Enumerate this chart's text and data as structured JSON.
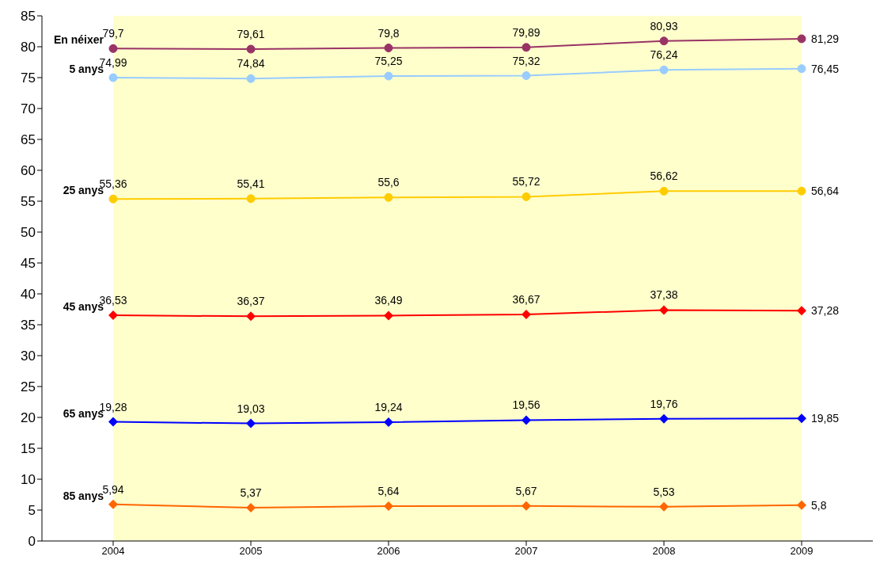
{
  "chart_data": {
    "type": "line",
    "categories": [
      "2004",
      "2005",
      "2006",
      "2007",
      "2008",
      "2009"
    ],
    "series": [
      {
        "name": "En néixer",
        "color": "#993366",
        "marker": "circle",
        "values": [
          79.7,
          79.61,
          79.8,
          79.89,
          80.93,
          81.29
        ],
        "value_labels": [
          "79,7",
          "79,61",
          "79,8",
          "79,89",
          "80,93",
          "81,29"
        ]
      },
      {
        "name": "5 anys",
        "color": "#99ccff",
        "marker": "circle",
        "values": [
          74.99,
          74.84,
          75.25,
          75.32,
          76.24,
          76.45
        ],
        "value_labels": [
          "74,99",
          "74,84",
          "75,25",
          "75,32",
          "76,24",
          "76,45"
        ]
      },
      {
        "name": "25 anys",
        "color": "#ffcc00",
        "marker": "circle",
        "values": [
          55.36,
          55.41,
          55.6,
          55.72,
          56.62,
          56.64
        ],
        "value_labels": [
          "55,36",
          "55,41",
          "55,6",
          "55,72",
          "56,62",
          "56,64"
        ]
      },
      {
        "name": "45 anys",
        "color": "#ff0000",
        "marker": "diamond",
        "values": [
          36.53,
          36.37,
          36.49,
          36.67,
          37.38,
          37.28
        ],
        "value_labels": [
          "36,53",
          "36,37",
          "36,49",
          "36,67",
          "37,38",
          "37,28"
        ]
      },
      {
        "name": "65 anys",
        "color": "#0000ff",
        "marker": "diamond",
        "values": [
          19.28,
          19.03,
          19.24,
          19.56,
          19.76,
          19.85
        ],
        "value_labels": [
          "19,28",
          "19,03",
          "19,24",
          "19,56",
          "19,76",
          "19,85"
        ]
      },
      {
        "name": "85 anys",
        "color": "#ff6600",
        "marker": "diamond",
        "values": [
          5.94,
          5.37,
          5.64,
          5.67,
          5.53,
          5.8
        ],
        "value_labels": [
          "5,94",
          "5,37",
          "5,64",
          "5,67",
          "5,53",
          "5,8"
        ]
      }
    ],
    "ylim": [
      0,
      85
    ],
    "yticks": [
      0,
      5,
      10,
      15,
      20,
      25,
      30,
      35,
      40,
      45,
      50,
      55,
      60,
      65,
      70,
      75,
      80,
      85
    ],
    "grid": false,
    "legend": false
  }
}
